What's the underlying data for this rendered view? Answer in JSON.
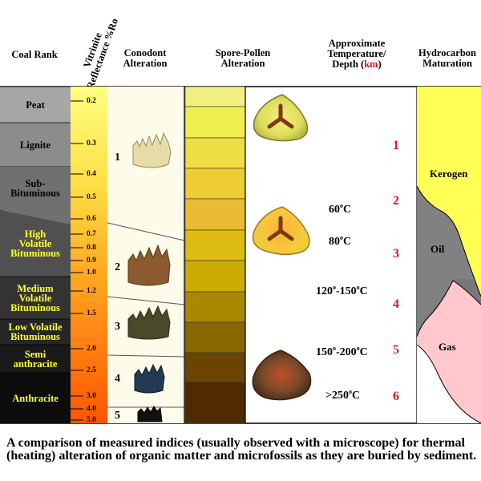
{
  "headers": {
    "coal_rank": "Coal Rank",
    "vitrinite": [
      "Vitrinite",
      "Reflectance %Ro"
    ],
    "conodont": [
      "Conodont",
      "Alteration"
    ],
    "spore": [
      "Spore-Pollen",
      "Alteration"
    ],
    "temp": [
      "Approximate",
      "Temperature/",
      "Depth ("
    ],
    "temp_km": "km",
    "temp_close": ")",
    "hydrocarbon": [
      "Hydrocarbon",
      "Maturation"
    ]
  },
  "coal_ranks": [
    {
      "lines": [
        "Peat"
      ],
      "color": "#a6a6a6",
      "text_color": "#000000"
    },
    {
      "lines": [
        "Lignite"
      ],
      "color": "#8c8c8c",
      "text_color": "#000000"
    },
    {
      "lines": [
        "Sub-",
        "Bituminous"
      ],
      "color": "#707070",
      "text_color": "#000000"
    },
    {
      "lines": [
        "High",
        "Volatile",
        "Bituminous"
      ],
      "color": "#505050",
      "text_color": "#ffff33"
    },
    {
      "lines": [
        "Medium",
        "Volatile",
        "Bituminous"
      ],
      "color": "#333333",
      "text_color": "#ffff33"
    },
    {
      "lines": [
        "Low Volatile",
        "Bituminous"
      ],
      "color": "#262626",
      "text_color": "#ffff33"
    },
    {
      "lines": [
        "Semi",
        "anthracite"
      ],
      "color": "#1a1a1a",
      "text_color": "#ffff33"
    },
    {
      "lines": [
        "Anthracite"
      ],
      "color": "#0d0d0d",
      "text_color": "#ffff33"
    }
  ],
  "ro_values": [
    "0.2",
    "0.3",
    "0.4",
    "0.5",
    "0.6",
    "0.7",
    "0.8",
    "0.9",
    "1.0",
    "1.2",
    "1.5",
    "2.0",
    "2.5",
    "3.0",
    "4.0",
    "5.0"
  ],
  "conodont_stages": [
    "1",
    "2",
    "3",
    "4",
    "5"
  ],
  "spore_colors": [
    "#f0f080",
    "#eeee50",
    "#eedd44",
    "#eecc33",
    "#eabb33",
    "#ddbb11",
    "#ccaa00",
    "#aa8800",
    "#886600",
    "#6b4400",
    "#502a00",
    "#1a1208"
  ],
  "temperatures": [
    {
      "value": "60",
      "unit": "o",
      "suffix": "C"
    },
    {
      "value": "80",
      "unit": "o",
      "suffix": "C"
    },
    {
      "value": "120",
      "unit": "o",
      "mid": "-150",
      "unit2": "o",
      "suffix": "C"
    },
    {
      "value": "150",
      "unit": "o",
      "mid": "-200",
      "unit2": "o",
      "suffix": "C"
    },
    {
      "value": ">250",
      "unit": "o",
      "suffix": "C"
    }
  ],
  "depths": [
    "1",
    "2",
    "3",
    "4",
    "5",
    "6"
  ],
  "hydrocarbon": {
    "kerogen": "Kerogen",
    "oil": "Oil",
    "gas": "Gas"
  },
  "caption": "A comparison of measured indices (usually observed with a microscope) for thermal (heating) alteration of organic matter and microfossils as they are buried by sediment."
}
